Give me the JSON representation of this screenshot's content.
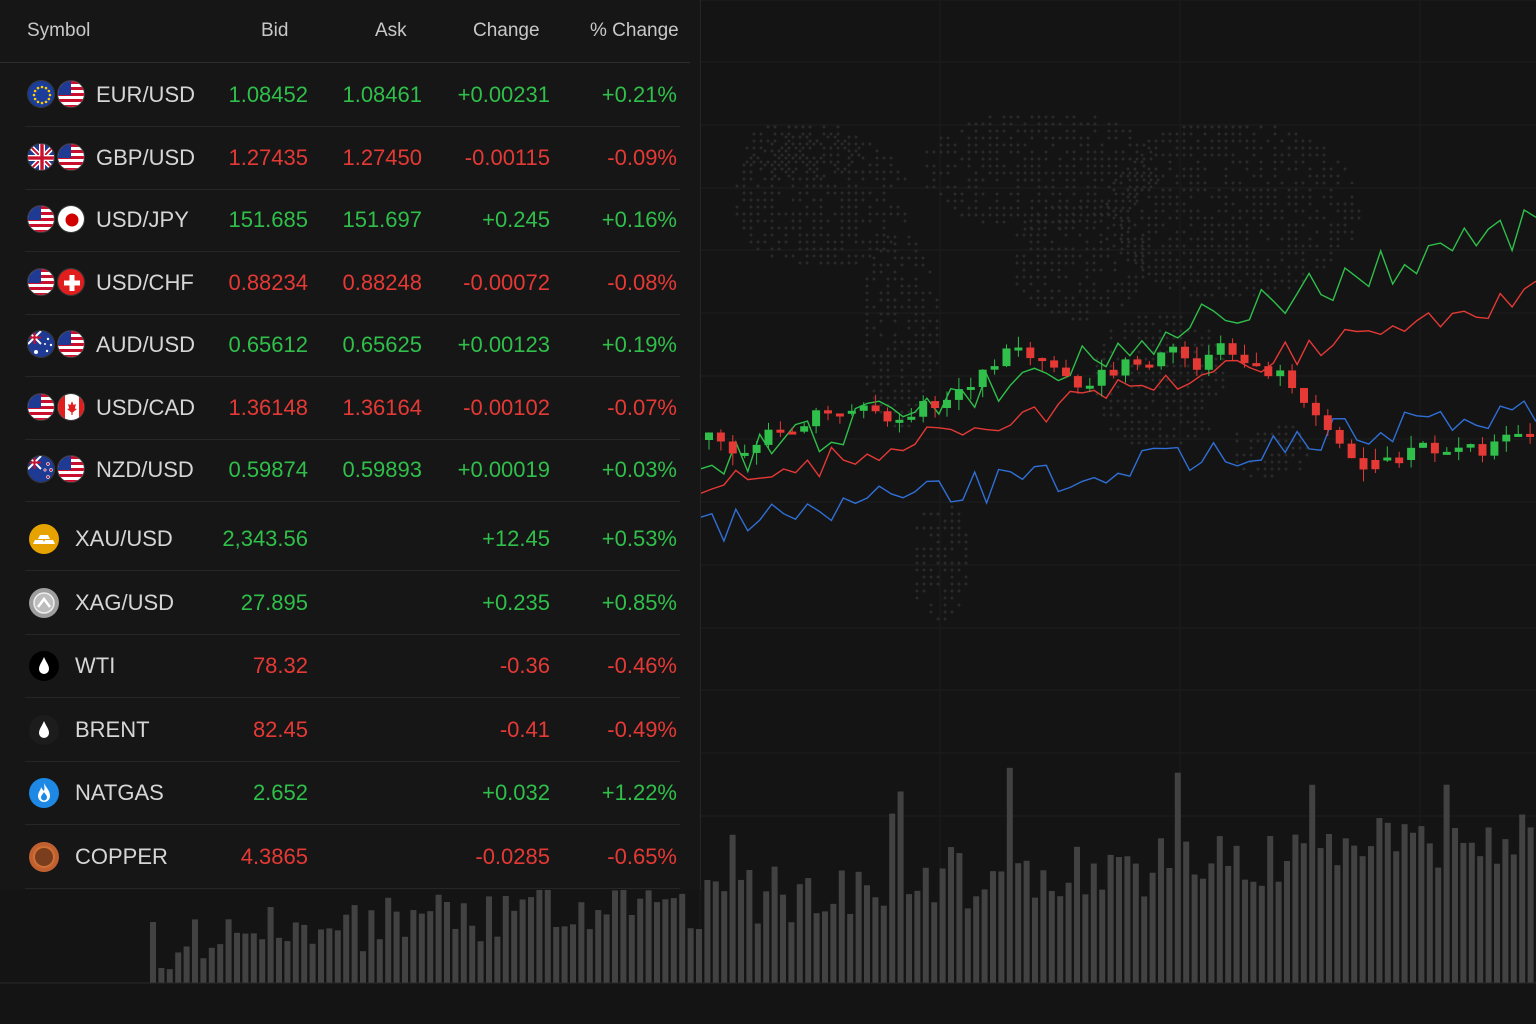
{
  "columns": {
    "symbol": "Symbol",
    "bid": "Bid",
    "ask": "Ask",
    "change": "Change",
    "pct_change": "% Change"
  },
  "fx": [
    {
      "symbol": "EUR/USD",
      "bid": "1.08452",
      "ask": "1.08461",
      "change": "+0.00231",
      "pct": "+0.21%",
      "dir": "up",
      "flags": [
        "eu-flag",
        "us-flag"
      ]
    },
    {
      "symbol": "GBP/USD",
      "bid": "1.27435",
      "ask": "1.27450",
      "change": "-0.00115",
      "pct": "-0.09%",
      "dir": "down",
      "flags": [
        "uk-flag",
        "us-flag"
      ]
    },
    {
      "symbol": "USD/JPY",
      "bid": "151.685",
      "ask": "151.697",
      "change": "+0.245",
      "pct": "+0.16%",
      "dir": "up",
      "flags": [
        "us-flag",
        "jp-flag"
      ]
    },
    {
      "symbol": "USD/CHF",
      "bid": "0.88234",
      "ask": "0.88248",
      "change": "-0.00072",
      "pct": "-0.08%",
      "dir": "down",
      "flags": [
        "us-flag",
        "ch-flag"
      ]
    },
    {
      "symbol": "AUD/USD",
      "bid": "0.65612",
      "ask": "0.65625",
      "change": "+0.00123",
      "pct": "+0.19%",
      "dir": "up",
      "flags": [
        "au-flag",
        "us-flag"
      ]
    },
    {
      "symbol": "USD/CAD",
      "bid": "1.36148",
      "ask": "1.36164",
      "change": "-0.00102",
      "pct": "-0.07%",
      "dir": "down",
      "flags": [
        "us-flag",
        "ca-flag"
      ]
    },
    {
      "symbol": "NZD/USD",
      "bid": "0.59874",
      "ask": "0.59893",
      "change": "+0.00019",
      "pct": "+0.03%",
      "dir": "up",
      "flags": [
        "nz-flag",
        "us-flag"
      ]
    }
  ],
  "commodities": [
    {
      "symbol": "XAU/USD",
      "bid": "2,343.56",
      "change": "+12.45",
      "pct": "+0.53%",
      "dir": "up",
      "icon": "gold-icon",
      "color": "#e6a300"
    },
    {
      "symbol": "XAG/USD",
      "bid": "27.895",
      "change": "+0.235",
      "pct": "+0.85%",
      "dir": "up",
      "icon": "silver-icon",
      "color": "#9e9e9e"
    },
    {
      "symbol": "WTI",
      "bid": "78.32",
      "change": "-0.36",
      "pct": "-0.46%",
      "dir": "down",
      "icon": "oil-drop-icon",
      "color": "#000000"
    },
    {
      "symbol": "BRENT",
      "bid": "82.45",
      "change": "-0.41",
      "pct": "-0.49%",
      "dir": "down",
      "icon": "oil-drop-icon",
      "color": "#1c1c1c"
    },
    {
      "symbol": "NATGAS",
      "bid": "2.652",
      "change": "+0.032",
      "pct": "+1.22%",
      "dir": "up",
      "icon": "flame-icon",
      "color": "#1e88e5"
    },
    {
      "symbol": "COPPER",
      "bid": "4.3865",
      "change": "-0.0285",
      "pct": "-0.65%",
      "dir": "down",
      "icon": "copper-icon",
      "color": "#c06030"
    }
  ],
  "colors": {
    "up": "#2fbf4a",
    "down": "#e53935",
    "line_green": "#2fbf4a",
    "line_red": "#e53935",
    "line_blue": "#2f6fd6",
    "volume": "#4a4a4a"
  }
}
